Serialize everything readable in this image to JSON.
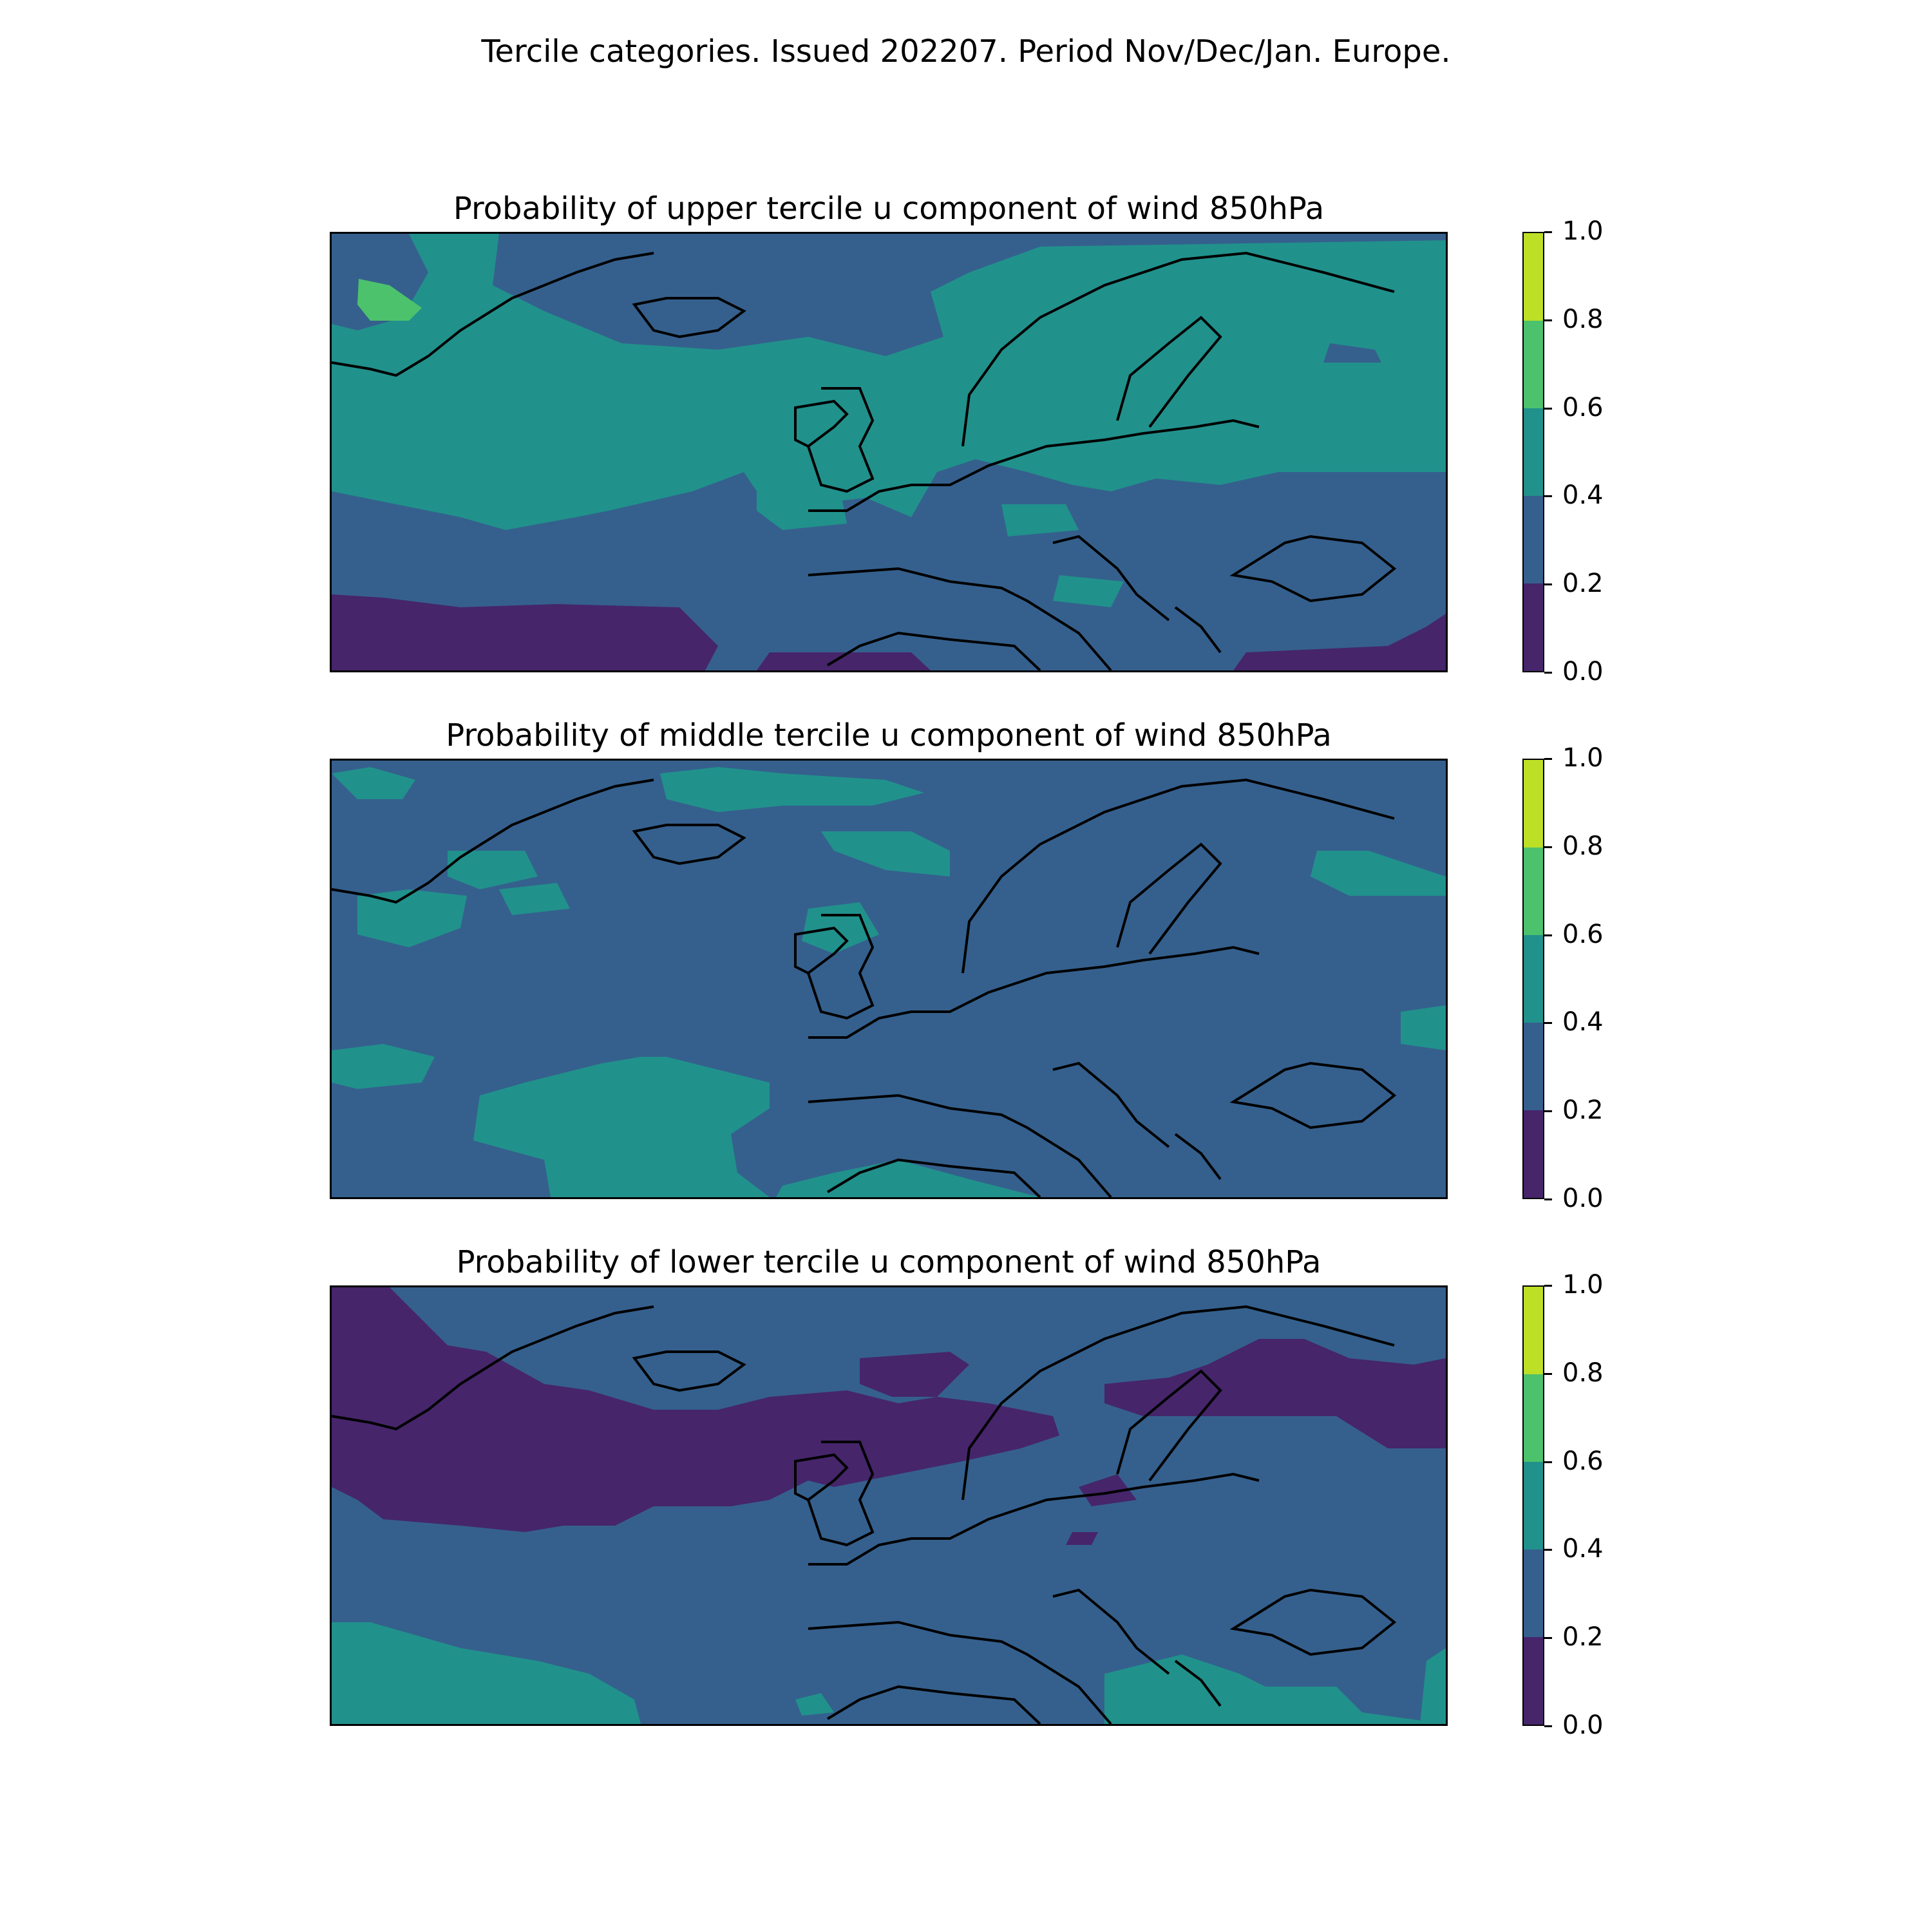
{
  "figure": {
    "title": "Tercile categories. Issued 202207. Period Nov/Dec/Jan. Europe."
  },
  "colorbar": {
    "ticks": [
      "0.0",
      "0.2",
      "0.4",
      "0.6",
      "0.8",
      "1.0"
    ],
    "levels": [
      {
        "range": [
          0.0,
          0.2
        ],
        "color": "#46256b"
      },
      {
        "range": [
          0.2,
          0.4
        ],
        "color": "#35608d"
      },
      {
        "range": [
          0.4,
          0.6
        ],
        "color": "#21918c"
      },
      {
        "range": [
          0.6,
          0.8
        ],
        "color": "#4cc26c"
      },
      {
        "range": [
          0.8,
          1.0
        ],
        "color": "#bddf26"
      }
    ]
  },
  "panels": [
    {
      "id": "upper",
      "title": "Probability of upper tercile u component of wind 850hPa",
      "background_level": "0.4-0.6",
      "regions": [
        {
          "label": "greenland-west-high-patch",
          "level": "0.6-0.8"
        },
        {
          "label": "iceland-band",
          "level": "0.2-0.4"
        },
        {
          "label": "mid-atlantic-southern-band",
          "level": "0.2-0.4"
        },
        {
          "label": "subtropical-atlantic",
          "level": "0.0-0.2"
        },
        {
          "label": "southern-europe-med",
          "level": "0.2-0.4"
        },
        {
          "label": "black-sea-region",
          "level": "0.2-0.4"
        },
        {
          "label": "south-east-corner",
          "level": "0.0-0.2"
        }
      ]
    },
    {
      "id": "middle",
      "title": "Probability of middle tercile u component of wind 850hPa",
      "background_level": "0.2-0.4",
      "regions": [
        {
          "label": "north-atlantic-strips",
          "level": "0.4-0.6"
        },
        {
          "label": "scotland-patch",
          "level": "0.4-0.6"
        },
        {
          "label": "west-african-coast",
          "level": "0.4-0.6"
        },
        {
          "label": "north-africa-patch",
          "level": "0.4-0.6"
        },
        {
          "label": "east-europe-patches",
          "level": "0.4-0.6"
        }
      ]
    },
    {
      "id": "lower",
      "title": "Probability of lower tercile u component of wind 850hPa",
      "background_level": "0.2-0.4",
      "regions": [
        {
          "label": "greenland-to-north-sea-band",
          "level": "0.0-0.2"
        },
        {
          "label": "russia-north-band",
          "level": "0.0-0.2"
        },
        {
          "label": "south-west-atlantic",
          "level": "0.4-0.6"
        },
        {
          "label": "aegean-eastern-med",
          "level": "0.4-0.6"
        }
      ]
    }
  ]
}
